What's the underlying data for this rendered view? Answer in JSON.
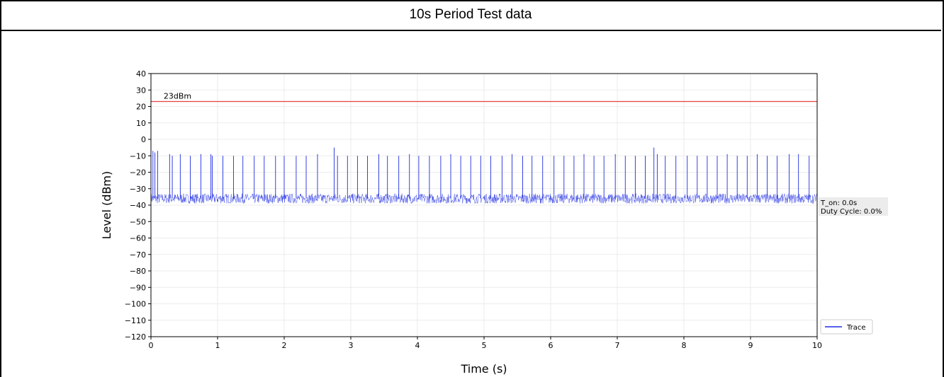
{
  "table": {
    "title": "10s Period Test data"
  },
  "chart_data": {
    "type": "line",
    "title": "",
    "xlabel": "Time (s)",
    "ylabel": "Level (dBm)",
    "xlim": [
      0,
      10
    ],
    "ylim": [
      -120,
      40
    ],
    "x_ticks": [
      0,
      1,
      2,
      3,
      4,
      5,
      6,
      7,
      8,
      9,
      10
    ],
    "y_ticks": [
      40,
      30,
      20,
      10,
      0,
      -10,
      -20,
      -30,
      -40,
      -50,
      -60,
      -70,
      -80,
      -90,
      -100,
      -110,
      -120
    ],
    "grid": true,
    "legend_position": "lower-right",
    "threshold": {
      "value": 23,
      "label": "23dBm",
      "color": "#e8423c"
    },
    "series": [
      {
        "name": "Trace",
        "color": "#1f2de0",
        "noise_floor_range": [
          -39,
          -33
        ],
        "spike_times": [
          0.03,
          0.06,
          0.1,
          0.28,
          0.32,
          0.44,
          0.59,
          0.75,
          0.9,
          0.92,
          1.08,
          1.24,
          1.38,
          1.55,
          1.7,
          1.87,
          2.0,
          2.18,
          2.33,
          2.5,
          2.75,
          2.8,
          2.95,
          3.1,
          3.25,
          3.42,
          3.55,
          3.72,
          3.88,
          4.02,
          4.18,
          4.35,
          4.5,
          4.65,
          4.8,
          4.95,
          5.1,
          5.27,
          5.42,
          5.58,
          5.72,
          5.88,
          6.05,
          6.2,
          6.35,
          6.5,
          6.65,
          6.8,
          6.97,
          7.12,
          7.27,
          7.42,
          7.55,
          7.6,
          7.72,
          7.88,
          8.05,
          8.2,
          8.35,
          8.5,
          8.65,
          8.8,
          8.95,
          9.1,
          9.25,
          9.4,
          9.58,
          9.72,
          9.88
        ],
        "spike_peaks": [
          -7,
          -8,
          -7,
          -9,
          -10,
          -9,
          -10,
          -9,
          -9,
          -10,
          -10,
          -10,
          -10,
          -10,
          -10,
          -10,
          -10,
          -10,
          -10,
          -9,
          -5,
          -10,
          -10,
          -10,
          -10,
          -9,
          -10,
          -10,
          -9,
          -10,
          -10,
          -10,
          -9,
          -10,
          -10,
          -10,
          -10,
          -10,
          -9,
          -10,
          -10,
          -10,
          -10,
          -10,
          -10,
          -9,
          -10,
          -10,
          -9,
          -10,
          -10,
          -10,
          -5,
          -9,
          -10,
          -10,
          -10,
          -10,
          -10,
          -10,
          -9,
          -10,
          -10,
          -9,
          -10,
          -10,
          -9,
          -9,
          -10
        ]
      }
    ],
    "annotation": {
      "lines": [
        "T_on: 0.0s",
        "Duty Cycle: 0.0%"
      ]
    }
  }
}
